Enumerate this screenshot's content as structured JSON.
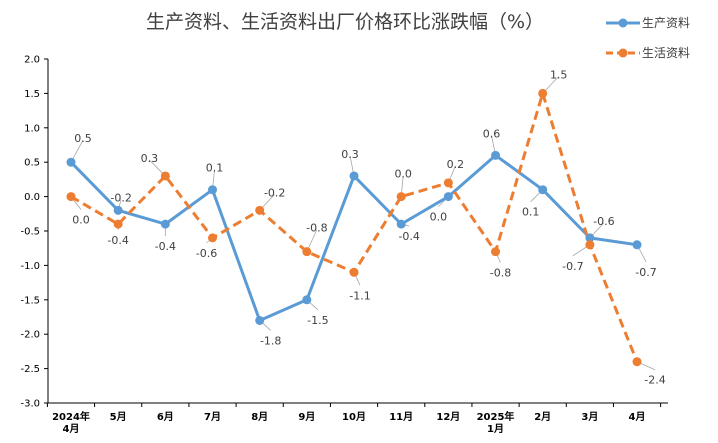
{
  "chart_data": {
    "type": "line",
    "title": "生产资料、生活资料出厂价格环比涨跌幅（%）",
    "categories": [
      "2024年\n4月",
      "5月",
      "6月",
      "7月",
      "8月",
      "9月",
      "10月",
      "11月",
      "12月",
      "2025年\n1月",
      "2月",
      "3月",
      "4月"
    ],
    "series": [
      {
        "name": "生产资料",
        "color": "#5b9bd5",
        "style": "solid",
        "values": [
          0.5,
          -0.2,
          -0.4,
          0.1,
          -1.8,
          -1.5,
          0.3,
          -0.4,
          0.0,
          0.6,
          0.1,
          -0.6,
          -0.7
        ]
      },
      {
        "name": "生活资料",
        "color": "#ed7d31",
        "style": "dashed",
        "values": [
          0.0,
          -0.4,
          0.3,
          -0.6,
          -0.2,
          -0.8,
          -1.1,
          0.0,
          0.2,
          -0.8,
          1.5,
          -0.7,
          -2.4
        ]
      }
    ],
    "y_ticks": [
      "2.0",
      "1.5",
      "1.0",
      "0.5",
      "0.0",
      "-0.5",
      "-1.0",
      "-1.5",
      "-2.0",
      "-2.5",
      "-3.0"
    ],
    "ylim": [
      -3.0,
      2.0
    ],
    "legend_position": "top-right",
    "grid": false
  }
}
